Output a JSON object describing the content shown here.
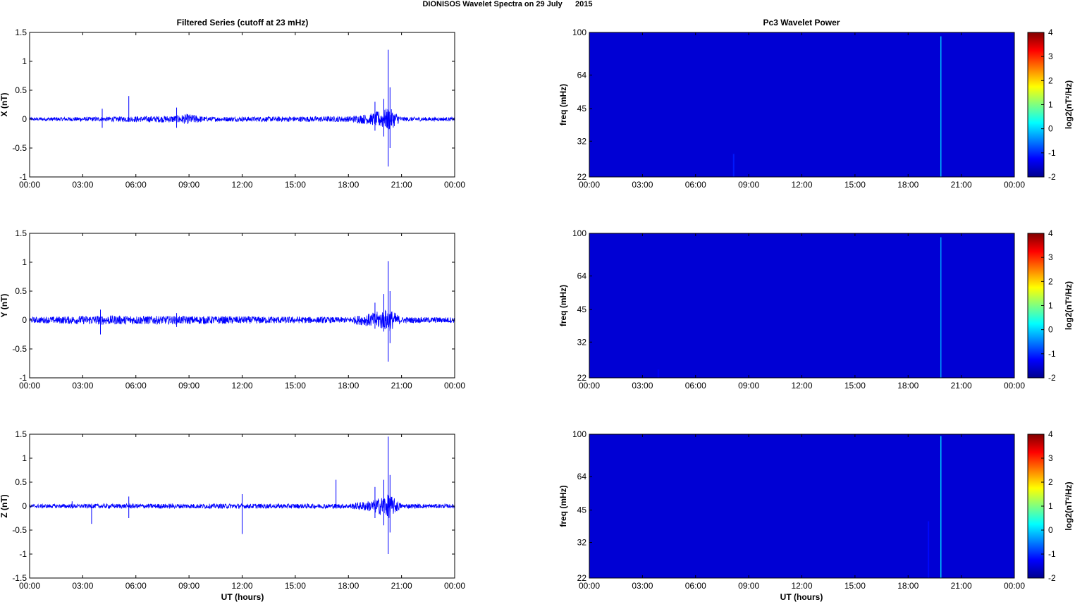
{
  "figure": {
    "title": "DIONISOS Wavelet Spectra on 29 July      2015",
    "left_title": "Filtered Series (cutoff at 23 mHz)",
    "right_title": "Pc3 Wavelet Power",
    "xlabel": "UT (hours)"
  },
  "colors": {
    "series": "#0000ff",
    "spectrogram_bg": "#00008f",
    "axis": "#000000"
  },
  "chart_data": [
    {
      "type": "line",
      "panel": "X",
      "ylabel": "X (nT)",
      "ylim": [
        -1,
        1.5
      ],
      "yticks": [
        -1,
        -0.5,
        0,
        0.5,
        1,
        1.5
      ],
      "yticklabels": [
        "-1",
        "-0.5",
        "0",
        "0.5",
        "1",
        "1.5"
      ],
      "xlim": [
        0,
        24
      ],
      "xticks": [
        0,
        3,
        6,
        9,
        12,
        15,
        18,
        21,
        24
      ],
      "xticklabels": [
        "00:00",
        "03:00",
        "06:00",
        "09:00",
        "12:00",
        "15:00",
        "18:00",
        "21:00",
        "00:00"
      ],
      "noise_envelope": [
        [
          0,
          0.03
        ],
        [
          4,
          0.04
        ],
        [
          8,
          0.06
        ],
        [
          9,
          0.09
        ],
        [
          10,
          0.04
        ],
        [
          18,
          0.05
        ],
        [
          19.3,
          0.1
        ],
        [
          20.3,
          0.2
        ],
        [
          21,
          0.04
        ],
        [
          24,
          0.03
        ]
      ],
      "spikes": [
        [
          4.1,
          0.18,
          -0.15
        ],
        [
          5.6,
          0.4,
          -0.05
        ],
        [
          8.3,
          0.2,
          -0.15
        ],
        [
          19.5,
          0.3,
          -0.2
        ],
        [
          20.0,
          0.35,
          -0.3
        ],
        [
          20.25,
          1.2,
          -0.82
        ],
        [
          20.35,
          0.55,
          -0.5
        ]
      ]
    },
    {
      "type": "line",
      "panel": "Y",
      "ylabel": "Y (nT)",
      "ylim": [
        -1,
        1.5
      ],
      "yticks": [
        -1,
        -0.5,
        0,
        0.5,
        1,
        1.5
      ],
      "yticklabels": [
        "-1",
        "-0.5",
        "0",
        "0.5",
        "1",
        "1.5"
      ],
      "xlim": [
        0,
        24
      ],
      "xticks": [
        0,
        3,
        6,
        9,
        12,
        15,
        18,
        21,
        24
      ],
      "xticklabels": [
        "00:00",
        "03:00",
        "06:00",
        "09:00",
        "12:00",
        "15:00",
        "18:00",
        "21:00",
        "00:00"
      ],
      "noise_envelope": [
        [
          0,
          0.05
        ],
        [
          4,
          0.08
        ],
        [
          9,
          0.07
        ],
        [
          14,
          0.06
        ],
        [
          18,
          0.05
        ],
        [
          19.3,
          0.12
        ],
        [
          20.3,
          0.2
        ],
        [
          21,
          0.05
        ],
        [
          24,
          0.05
        ]
      ],
      "spikes": [
        [
          4.0,
          0.18,
          -0.25
        ],
        [
          8.3,
          0.12,
          -0.12
        ],
        [
          19.5,
          0.3,
          -0.15
        ],
        [
          20.0,
          0.45,
          -0.2
        ],
        [
          20.25,
          1.02,
          -0.72
        ],
        [
          20.35,
          0.5,
          -0.4
        ]
      ]
    },
    {
      "type": "line",
      "panel": "Z",
      "ylabel": "Z (nT)",
      "ylim": [
        -1.5,
        1.5
      ],
      "yticks": [
        -1.5,
        -1,
        -0.5,
        0,
        0.5,
        1,
        1.5
      ],
      "yticklabels": [
        "-1.5",
        "-1",
        "-0.5",
        "0",
        "0.5",
        "1",
        "1.5"
      ],
      "xlim": [
        0,
        24
      ],
      "xticks": [
        0,
        3,
        6,
        9,
        12,
        15,
        18,
        21,
        24
      ],
      "xticklabels": [
        "00:00",
        "03:00",
        "06:00",
        "09:00",
        "12:00",
        "15:00",
        "18:00",
        "21:00",
        "00:00"
      ],
      "noise_envelope": [
        [
          0,
          0.04
        ],
        [
          6,
          0.05
        ],
        [
          12,
          0.05
        ],
        [
          18,
          0.05
        ],
        [
          19.3,
          0.12
        ],
        [
          20.3,
          0.25
        ],
        [
          21,
          0.05
        ],
        [
          24,
          0.04
        ]
      ],
      "spikes": [
        [
          2.4,
          0.1,
          -0.05
        ],
        [
          3.5,
          0.05,
          -0.37
        ],
        [
          5.6,
          0.2,
          -0.25
        ],
        [
          12.0,
          0.25,
          -0.58
        ],
        [
          17.3,
          0.55,
          -0.05
        ],
        [
          19.5,
          0.4,
          -0.25
        ],
        [
          20.0,
          0.55,
          -0.4
        ],
        [
          20.25,
          1.45,
          -1.0
        ],
        [
          20.35,
          0.65,
          -0.55
        ]
      ]
    },
    {
      "type": "heatmap",
      "panel": "X-power",
      "ylabel": "freq (mHz)",
      "yscale": "log",
      "ylim": [
        22,
        100
      ],
      "yticks": [
        22,
        32,
        45,
        64,
        100
      ],
      "yticklabels": [
        "22",
        "32",
        "45",
        "64",
        "100"
      ],
      "xlim": [
        0,
        24
      ],
      "xticks": [
        0,
        3,
        6,
        9,
        12,
        15,
        18,
        21,
        24
      ],
      "xticklabels": [
        "00:00",
        "03:00",
        "06:00",
        "09:00",
        "12:00",
        "15:00",
        "18:00",
        "21:00",
        "00:00"
      ],
      "colorbar": {
        "label": "log2(nT²/Hz)",
        "range": [
          -2,
          4
        ],
        "ticks": [
          -2,
          -1,
          0,
          1,
          2,
          3,
          4
        ],
        "ticklabels": [
          "-2",
          "-1",
          "0",
          "1",
          "2",
          "3",
          "4"
        ]
      },
      "background_level": -1.5,
      "features": [
        {
          "t": 19.85,
          "f_min": 22,
          "f_max": 96,
          "level": 0.0,
          "width_h": 0.06
        },
        {
          "t": 8.15,
          "f_min": 22,
          "f_max": 28,
          "level": -1.1,
          "width_h": 0.08
        }
      ]
    },
    {
      "type": "heatmap",
      "panel": "Y-power",
      "ylabel": "freq (mHz)",
      "yscale": "log",
      "ylim": [
        22,
        100
      ],
      "yticks": [
        22,
        32,
        45,
        64,
        100
      ],
      "yticklabels": [
        "22",
        "32",
        "45",
        "64",
        "100"
      ],
      "xlim": [
        0,
        24
      ],
      "xticks": [
        0,
        3,
        6,
        9,
        12,
        15,
        18,
        21,
        24
      ],
      "xticklabels": [
        "00:00",
        "03:00",
        "06:00",
        "09:00",
        "12:00",
        "15:00",
        "18:00",
        "21:00",
        "00:00"
      ],
      "colorbar": {
        "label": "log2(nT²/Hz)",
        "range": [
          -2,
          4
        ],
        "ticks": [
          -2,
          -1,
          0,
          1,
          2,
          3,
          4
        ],
        "ticklabels": [
          "-2",
          "-1",
          "0",
          "1",
          "2",
          "3",
          "4"
        ]
      },
      "background_level": -1.5,
      "features": [
        {
          "t": 19.85,
          "f_min": 22,
          "f_max": 96,
          "level": -0.2,
          "width_h": 0.06
        },
        {
          "t": 3.9,
          "f_min": 22,
          "f_max": 24,
          "level": -1.3,
          "width_h": 0.1
        }
      ]
    },
    {
      "type": "heatmap",
      "panel": "Z-power",
      "ylabel": "freq (mHz)",
      "yscale": "log",
      "ylim": [
        22,
        100
      ],
      "yticks": [
        22,
        32,
        45,
        64,
        100
      ],
      "yticklabels": [
        "22",
        "32",
        "45",
        "64",
        "100"
      ],
      "xlim": [
        0,
        24
      ],
      "xticks": [
        0,
        3,
        6,
        9,
        12,
        15,
        18,
        21,
        24
      ],
      "xticklabels": [
        "00:00",
        "03:00",
        "06:00",
        "09:00",
        "12:00",
        "15:00",
        "18:00",
        "21:00",
        "00:00"
      ],
      "colorbar": {
        "label": "log2(nT²/Hz)",
        "range": [
          -2,
          4
        ],
        "ticks": [
          -2,
          -1,
          0,
          1,
          2,
          3,
          4
        ],
        "ticklabels": [
          "-2",
          "-1",
          "0",
          "1",
          "2",
          "3",
          "4"
        ]
      },
      "background_level": -1.5,
      "features": [
        {
          "t": 19.85,
          "f_min": 22,
          "f_max": 98,
          "level": 0.1,
          "width_h": 0.06
        },
        {
          "t": 19.15,
          "f_min": 22,
          "f_max": 40,
          "level": -1.2,
          "width_h": 0.08
        }
      ]
    }
  ]
}
